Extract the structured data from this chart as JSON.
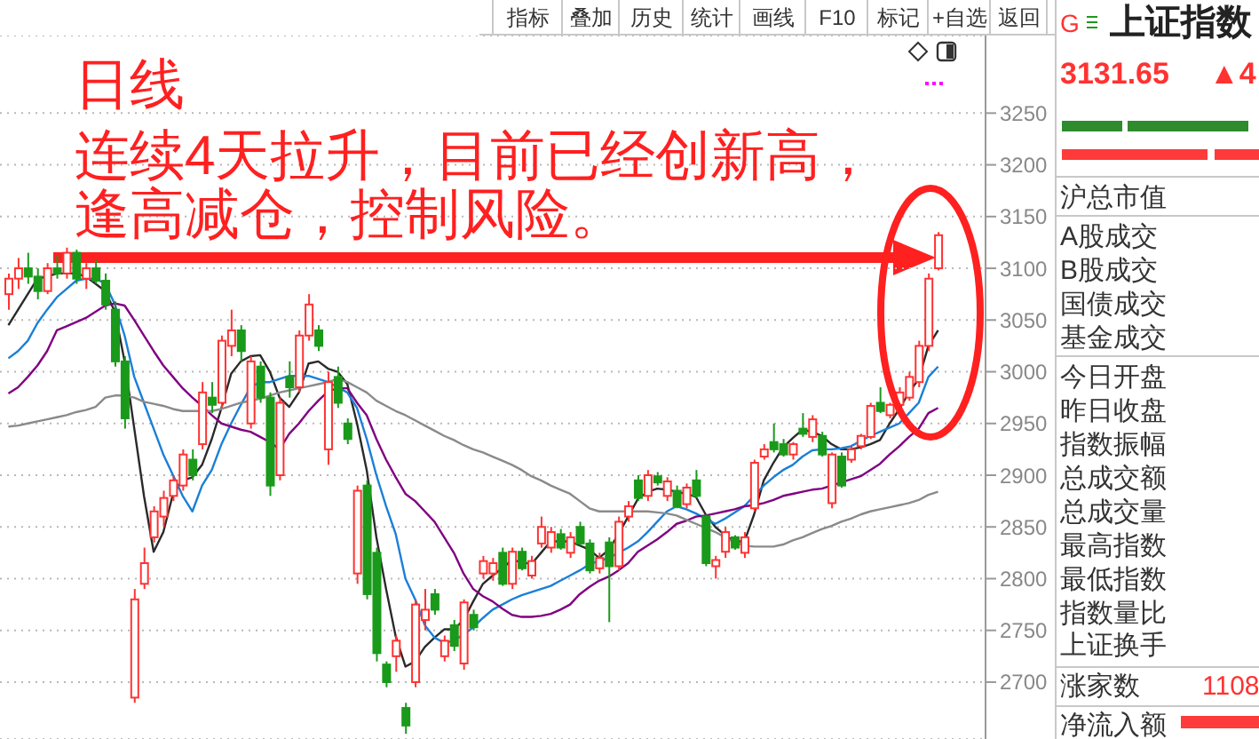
{
  "chart_data": {
    "type": "candlestick",
    "categories": [
      null,
      null,
      null,
      null,
      null,
      null,
      null,
      null,
      null,
      null,
      null,
      null,
      null,
      null,
      null,
      null,
      null,
      null,
      null,
      null,
      null,
      null,
      null,
      null,
      null,
      null,
      null,
      null,
      null,
      null,
      null,
      null,
      null,
      null,
      null,
      null,
      null,
      null,
      null,
      null,
      null,
      null,
      null,
      null,
      null,
      null,
      null,
      null,
      null,
      null,
      null,
      null,
      null,
      null,
      null,
      null,
      null,
      null,
      null,
      null,
      null,
      null,
      null,
      null,
      null,
      null,
      null,
      null,
      null,
      null,
      null,
      null,
      null,
      null,
      null,
      null,
      null,
      null,
      null,
      null,
      null,
      null,
      null,
      null,
      null,
      null,
      null,
      null,
      null,
      null,
      null,
      null,
      null,
      null,
      null,
      null,
      null
    ],
    "ohlc": [
      [
        3075,
        3095,
        3060,
        3090
      ],
      [
        3090,
        3110,
        3080,
        3100
      ],
      [
        3100,
        3115,
        3085,
        3092
      ],
      [
        3092,
        3100,
        3070,
        3078
      ],
      [
        3078,
        3105,
        3075,
        3100
      ],
      [
        3100,
        3112,
        3090,
        3095
      ],
      [
        3095,
        3120,
        3090,
        3115
      ],
      [
        3115,
        3118,
        3085,
        3090
      ],
      [
        3090,
        3105,
        3080,
        3100
      ],
      [
        3100,
        3108,
        3085,
        3088
      ],
      [
        3088,
        3095,
        3060,
        3065
      ],
      [
        3060,
        3068,
        3005,
        3010
      ],
      [
        3010,
        3015,
        2945,
        2955
      ],
      [
        2685,
        2790,
        2680,
        2780
      ],
      [
        2795,
        2830,
        2790,
        2815
      ],
      [
        2840,
        2870,
        2835,
        2865
      ],
      [
        2860,
        2885,
        2850,
        2878
      ],
      [
        2880,
        2900,
        2875,
        2895
      ],
      [
        2890,
        2925,
        2885,
        2920
      ],
      [
        2915,
        2925,
        2895,
        2900
      ],
      [
        2930,
        2990,
        2925,
        2980
      ],
      [
        2975,
        2990,
        2960,
        2968
      ],
      [
        2970,
        3035,
        2965,
        3030
      ],
      [
        3025,
        3060,
        3015,
        3040
      ],
      [
        3040,
        3045,
        3010,
        3020
      ],
      [
        2950,
        3015,
        2945,
        3010
      ],
      [
        3005,
        3010,
        2970,
        2975
      ],
      [
        2975,
        2980,
        2880,
        2890
      ],
      [
        2900,
        2975,
        2895,
        2970
      ],
      [
        2995,
        3010,
        2975,
        2985
      ],
      [
        2985,
        3040,
        2980,
        3035
      ],
      [
        3035,
        3075,
        3030,
        3065
      ],
      [
        3040,
        3045,
        3020,
        3025
      ],
      [
        2925,
        3000,
        2910,
        2990
      ],
      [
        2995,
        3005,
        2965,
        2970
      ],
      [
        2950,
        2955,
        2930,
        2935
      ],
      [
        2805,
        2890,
        2795,
        2885
      ],
      [
        2890,
        2895,
        2780,
        2785
      ],
      [
        2825,
        2830,
        2720,
        2728
      ],
      [
        2717,
        2720,
        2695,
        2700
      ],
      [
        2725,
        2745,
        2710,
        2740
      ],
      [
        2675,
        2680,
        2650,
        2658
      ],
      [
        2700,
        2780,
        2695,
        2775
      ],
      [
        2760,
        2790,
        2750,
        2770
      ],
      [
        2785,
        2790,
        2765,
        2770
      ],
      [
        2725,
        2745,
        2720,
        2740
      ],
      [
        2755,
        2760,
        2730,
        2735
      ],
      [
        2718,
        2780,
        2712,
        2777
      ],
      [
        2765,
        2770,
        2750,
        2753
      ],
      [
        2805,
        2822,
        2800,
        2817
      ],
      [
        2805,
        2820,
        2798,
        2815
      ],
      [
        2825,
        2830,
        2793,
        2795
      ],
      [
        2795,
        2830,
        2790,
        2826
      ],
      [
        2826,
        2830,
        2808,
        2810
      ],
      [
        2803,
        2822,
        2800,
        2817
      ],
      [
        2834,
        2860,
        2830,
        2850
      ],
      [
        2830,
        2850,
        2825,
        2845
      ],
      [
        2843,
        2848,
        2828,
        2830
      ],
      [
        2825,
        2845,
        2820,
        2840
      ],
      [
        2850,
        2855,
        2832,
        2834
      ],
      [
        2834,
        2838,
        2805,
        2808
      ],
      [
        2810,
        2825,
        2805,
        2820
      ],
      [
        2835,
        2840,
        2758,
        2812
      ],
      [
        2812,
        2860,
        2808,
        2855
      ],
      [
        2860,
        2875,
        2855,
        2870
      ],
      [
        2895,
        2900,
        2875,
        2878
      ],
      [
        2880,
        2905,
        2875,
        2900
      ],
      [
        2899,
        2903,
        2890,
        2893
      ],
      [
        2880,
        2898,
        2875,
        2894
      ],
      [
        2885,
        2890,
        2868,
        2870
      ],
      [
        2872,
        2892,
        2868,
        2888
      ],
      [
        2895,
        2905,
        2878,
        2880
      ],
      [
        2860,
        2862,
        2812,
        2815
      ],
      [
        2812,
        2822,
        2800,
        2818
      ],
      [
        2826,
        2850,
        2820,
        2845
      ],
      [
        2840,
        2842,
        2828,
        2830
      ],
      [
        2825,
        2845,
        2820,
        2840
      ],
      [
        2868,
        2915,
        2865,
        2912
      ],
      [
        2918,
        2930,
        2915,
        2925
      ],
      [
        2932,
        2950,
        2922,
        2925
      ],
      [
        2930,
        2935,
        2918,
        2920
      ],
      [
        2920,
        2932,
        2915,
        2930
      ],
      [
        2945,
        2960,
        2937,
        2940
      ],
      [
        2937,
        2958,
        2932,
        2954
      ],
      [
        2938,
        2942,
        2918,
        2920
      ],
      [
        2873,
        2922,
        2868,
        2920
      ],
      [
        2918,
        2922,
        2888,
        2890
      ],
      [
        2915,
        2928,
        2912,
        2925
      ],
      [
        2928,
        2940,
        2925,
        2938
      ],
      [
        2937,
        2970,
        2935,
        2967
      ],
      [
        2970,
        2985,
        2960,
        2962
      ],
      [
        2958,
        2970,
        2955,
        2968
      ],
      [
        2968,
        2985,
        2962,
        2980
      ],
      [
        2975,
        3000,
        2972,
        2995
      ],
      [
        2990,
        3030,
        2985,
        3025
      ],
      [
        3025,
        3095,
        3020,
        3090
      ],
      [
        3100,
        3135,
        3098,
        3132
      ]
    ],
    "colors": [
      "#ff3232",
      "#ff3232",
      "#1a9a1a",
      "#1a9a1a",
      "#ff3232",
      "#1a9a1a",
      "#ff3232",
      "#1a9a1a",
      "#ff3232",
      "#1a9a1a",
      "#1a9a1a",
      "#1a9a1a",
      "#1a9a1a",
      "#ff3232",
      "#ff3232",
      "#ff3232",
      "#ff3232",
      "#ff3232",
      "#ff3232",
      "#1a9a1a",
      "#ff3232",
      "#1a9a1a",
      "#ff3232",
      "#ff3232",
      "#1a9a1a",
      "#ff3232",
      "#1a9a1a",
      "#1a9a1a",
      "#ff3232",
      "#1a9a1a",
      "#ff3232",
      "#ff3232",
      "#1a9a1a",
      "#ff3232",
      "#1a9a1a",
      "#1a9a1a",
      "#ff3232",
      "#1a9a1a",
      "#1a9a1a",
      "#1a9a1a",
      "#ff3232",
      "#1a9a1a",
      "#ff3232",
      "#ff3232",
      "#1a9a1a",
      "#ff3232",
      "#1a9a1a",
      "#ff3232",
      "#1a9a1a",
      "#ff3232",
      "#ff3232",
      "#1a9a1a",
      "#ff3232",
      "#1a9a1a",
      "#ff3232",
      "#ff3232",
      "#ff3232",
      "#1a9a1a",
      "#ff3232",
      "#1a9a1a",
      "#1a9a1a",
      "#ff3232",
      "#1a9a1a",
      "#ff3232",
      "#ff3232",
      "#1a9a1a",
      "#ff3232",
      "#1a9a1a",
      "#ff3232",
      "#1a9a1a",
      "#ff3232",
      "#1a9a1a",
      "#1a9a1a",
      "#ff3232",
      "#ff3232",
      "#1a9a1a",
      "#ff3232",
      "#ff3232",
      "#ff3232",
      "#1a9a1a",
      "#1a9a1a",
      "#ff3232",
      "#1a9a1a",
      "#ff3232",
      "#1a9a1a",
      "#ff3232",
      "#1a9a1a",
      "#ff3232",
      "#ff3232",
      "#ff3232",
      "#1a9a1a",
      "#ff3232",
      "#ff3232",
      "#ff3232",
      "#ff3232",
      "#ff3232",
      "#ff3232"
    ],
    "series": [
      {
        "type": "line",
        "color": "#2a2a2a",
        "values": [
          3045,
          3060,
          3075,
          3090,
          3092,
          3095,
          3095,
          3095,
          3092,
          3085,
          3078,
          3058,
          3010,
          2945,
          2880,
          2826,
          2845,
          2882,
          2895,
          2898,
          2910,
          2935,
          2965,
          2998,
          3010,
          3015,
          3016,
          3000,
          2975,
          2966,
          2980,
          3008,
          3010,
          3003,
          3000,
          2988,
          2950,
          2905,
          2840,
          2790,
          2744,
          2715,
          2720,
          2734,
          2743,
          2751,
          2751,
          2760,
          2778,
          2795,
          2803,
          2810,
          2818,
          2816,
          2814,
          2825,
          2836,
          2836,
          2836,
          2832,
          2828,
          2820,
          2828,
          2843,
          2860,
          2877,
          2884,
          2887,
          2886,
          2884,
          2882,
          2879,
          2862,
          2850,
          2842,
          2836,
          2836,
          2862,
          2895,
          2912,
          2927,
          2936,
          2944,
          2942,
          2938,
          2930,
          2925,
          2925,
          2927,
          2930,
          2934,
          2950,
          2964,
          2980,
          2993,
          3025,
          3040
        ]
      },
      {
        "type": "line",
        "color": "#1a7fd8",
        "values": [
          3013,
          3020,
          3030,
          3047,
          3060,
          3072,
          3080,
          3088,
          3090,
          3090,
          3085,
          3065,
          3035,
          2995,
          2970,
          2945,
          2920,
          2900,
          2880,
          2865,
          2890,
          2905,
          2930,
          2950,
          2968,
          2985,
          2990,
          2990,
          2993,
          2996,
          2996,
          2996,
          2993,
          2990,
          2985,
          2980,
          2965,
          2935,
          2900,
          2870,
          2843,
          2800,
          2780,
          2755,
          2743,
          2738,
          2740,
          2746,
          2753,
          2762,
          2770,
          2775,
          2780,
          2784,
          2787,
          2790,
          2793,
          2798,
          2803,
          2808,
          2814,
          2817,
          2820,
          2825,
          2830,
          2836,
          2845,
          2855,
          2865,
          2870,
          2867,
          2863,
          2858,
          2853,
          2858,
          2864,
          2870,
          2880,
          2890,
          2898,
          2905,
          2910,
          2918,
          2924,
          2925,
          2925,
          2926,
          2928,
          2933,
          2938,
          2942,
          2946,
          2950,
          2960,
          2970,
          2995,
          3005
        ]
      },
      {
        "type": "line",
        "color": "#800080",
        "values": [
          2979,
          2985,
          2995,
          3006,
          3020,
          3040,
          3044,
          3048,
          3052,
          3058,
          3064,
          3066,
          3064,
          3050,
          3035,
          3020,
          3006,
          2995,
          2984,
          2975,
          2967,
          2958,
          2950,
          2947,
          2944,
          2942,
          2937,
          2932,
          2925,
          2940,
          2950,
          2962,
          2972,
          2981,
          2984,
          2984,
          2970,
          2958,
          2935,
          2915,
          2898,
          2882,
          2875,
          2865,
          2855,
          2840,
          2825,
          2805,
          2790,
          2783,
          2778,
          2771,
          2765,
          2763,
          2763,
          2764,
          2766,
          2770,
          2775,
          2785,
          2792,
          2798,
          2802,
          2808,
          2815,
          2826,
          2832,
          2838,
          2845,
          2853,
          2856,
          2860,
          2861,
          2863,
          2865,
          2867,
          2870,
          2871,
          2873,
          2876,
          2880,
          2882,
          2884,
          2886,
          2887,
          2890,
          2893,
          2896,
          2899,
          2905,
          2911,
          2920,
          2928,
          2937,
          2945,
          2960,
          2965
        ]
      },
      {
        "type": "line",
        "color": "#8a8a8a",
        "values": [
          2947,
          2948,
          2950,
          2952,
          2954,
          2956,
          2958,
          2961,
          2963,
          2966,
          2975,
          2977,
          2977,
          2975,
          2971,
          2969,
          2967,
          2964,
          2962,
          2962,
          2962,
          2962,
          2964,
          2967,
          2970,
          2972,
          2974,
          2977,
          2980,
          2982,
          2984,
          2986,
          2988,
          2990,
          2993,
          2990,
          2985,
          2980,
          2972,
          2967,
          2962,
          2958,
          2953,
          2948,
          2943,
          2938,
          2934,
          2929,
          2925,
          2922,
          2918,
          2914,
          2910,
          2905,
          2899,
          2895,
          2890,
          2886,
          2882,
          2875,
          2868,
          2865,
          2865,
          2865,
          2865,
          2865,
          2865,
          2864,
          2863,
          2861,
          2857,
          2853,
          2849,
          2845,
          2840,
          2835,
          2832,
          2831,
          2831,
          2831,
          2833,
          2837,
          2840,
          2844,
          2848,
          2851,
          2855,
          2858,
          2862,
          2865,
          2867,
          2869,
          2871,
          2873,
          2876,
          2881,
          2884
        ]
      }
    ],
    "ylim": [
      2645,
      3325
    ],
    "yticks": [
      2700,
      2750,
      2800,
      2850,
      2900,
      2950,
      3000,
      3050,
      3100,
      3150,
      3200,
      3250
    ],
    "grid": "y",
    "tick_labels": "y",
    "annotations": [
      "日线",
      "连续4天拉升，目前已经创新高，",
      "逢高减仓，控制风险。",
      "指标",
      "叠加",
      "历史",
      "统计",
      "画线",
      "F10",
      "标记",
      "+自选",
      "返回",
      "G",
      "上证指数",
      "3131.65",
      "▲4",
      "沪总市值",
      "A股成交",
      "B股成交",
      "国债成交",
      "基金成交",
      "今日开盘",
      "昨日收盘",
      "指数振幅",
      "总成交额",
      "总成交量",
      "最高指数",
      "最低指数",
      "指数量比",
      "上证换手",
      "涨家数",
      "1108",
      "净流入额"
    ]
  }
}
